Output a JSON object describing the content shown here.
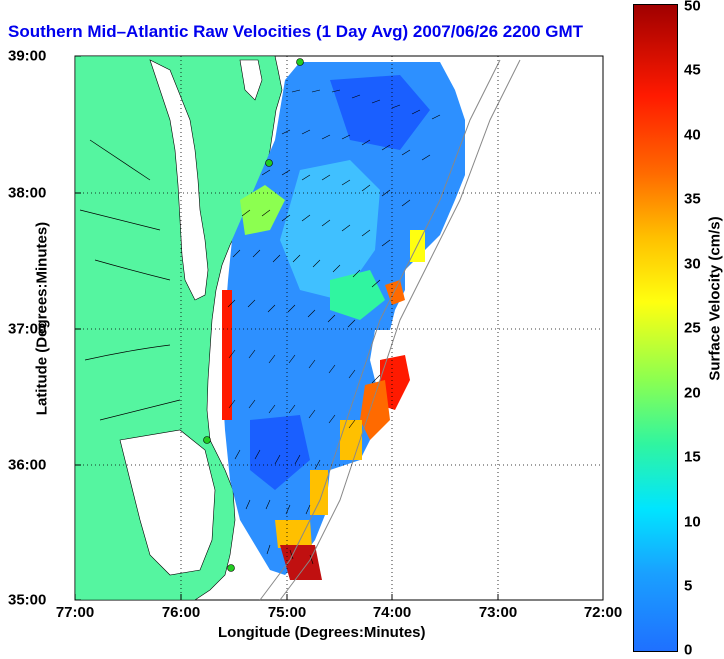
{
  "title": "Southern Mid–Atlantic Raw Velocities (1 Day Avg) 2007/06/26 2200 GMT",
  "xaxis": {
    "label": "Longitude (Degrees:Minutes)",
    "ticks": [
      "77:00",
      "76:00",
      "75:00",
      "74:00",
      "73:00",
      "72:00"
    ]
  },
  "yaxis": {
    "label": "Latitude (Degrees:Minutes)",
    "ticks": [
      "39:00",
      "38:00",
      "37:00",
      "36:00",
      "35:00"
    ]
  },
  "colorbar": {
    "label": "Surface Velocity (cm/s)",
    "ticks": [
      "50",
      "45",
      "40",
      "35",
      "30",
      "25",
      "20",
      "15",
      "10",
      "5",
      "0"
    ],
    "min": 0,
    "max": 50
  },
  "colors": {
    "land": "#55f5a0",
    "water": "#ffffff",
    "title": "#0000ee",
    "velocity_low": "#1f70ff",
    "velocity_high": "#a00000"
  }
}
